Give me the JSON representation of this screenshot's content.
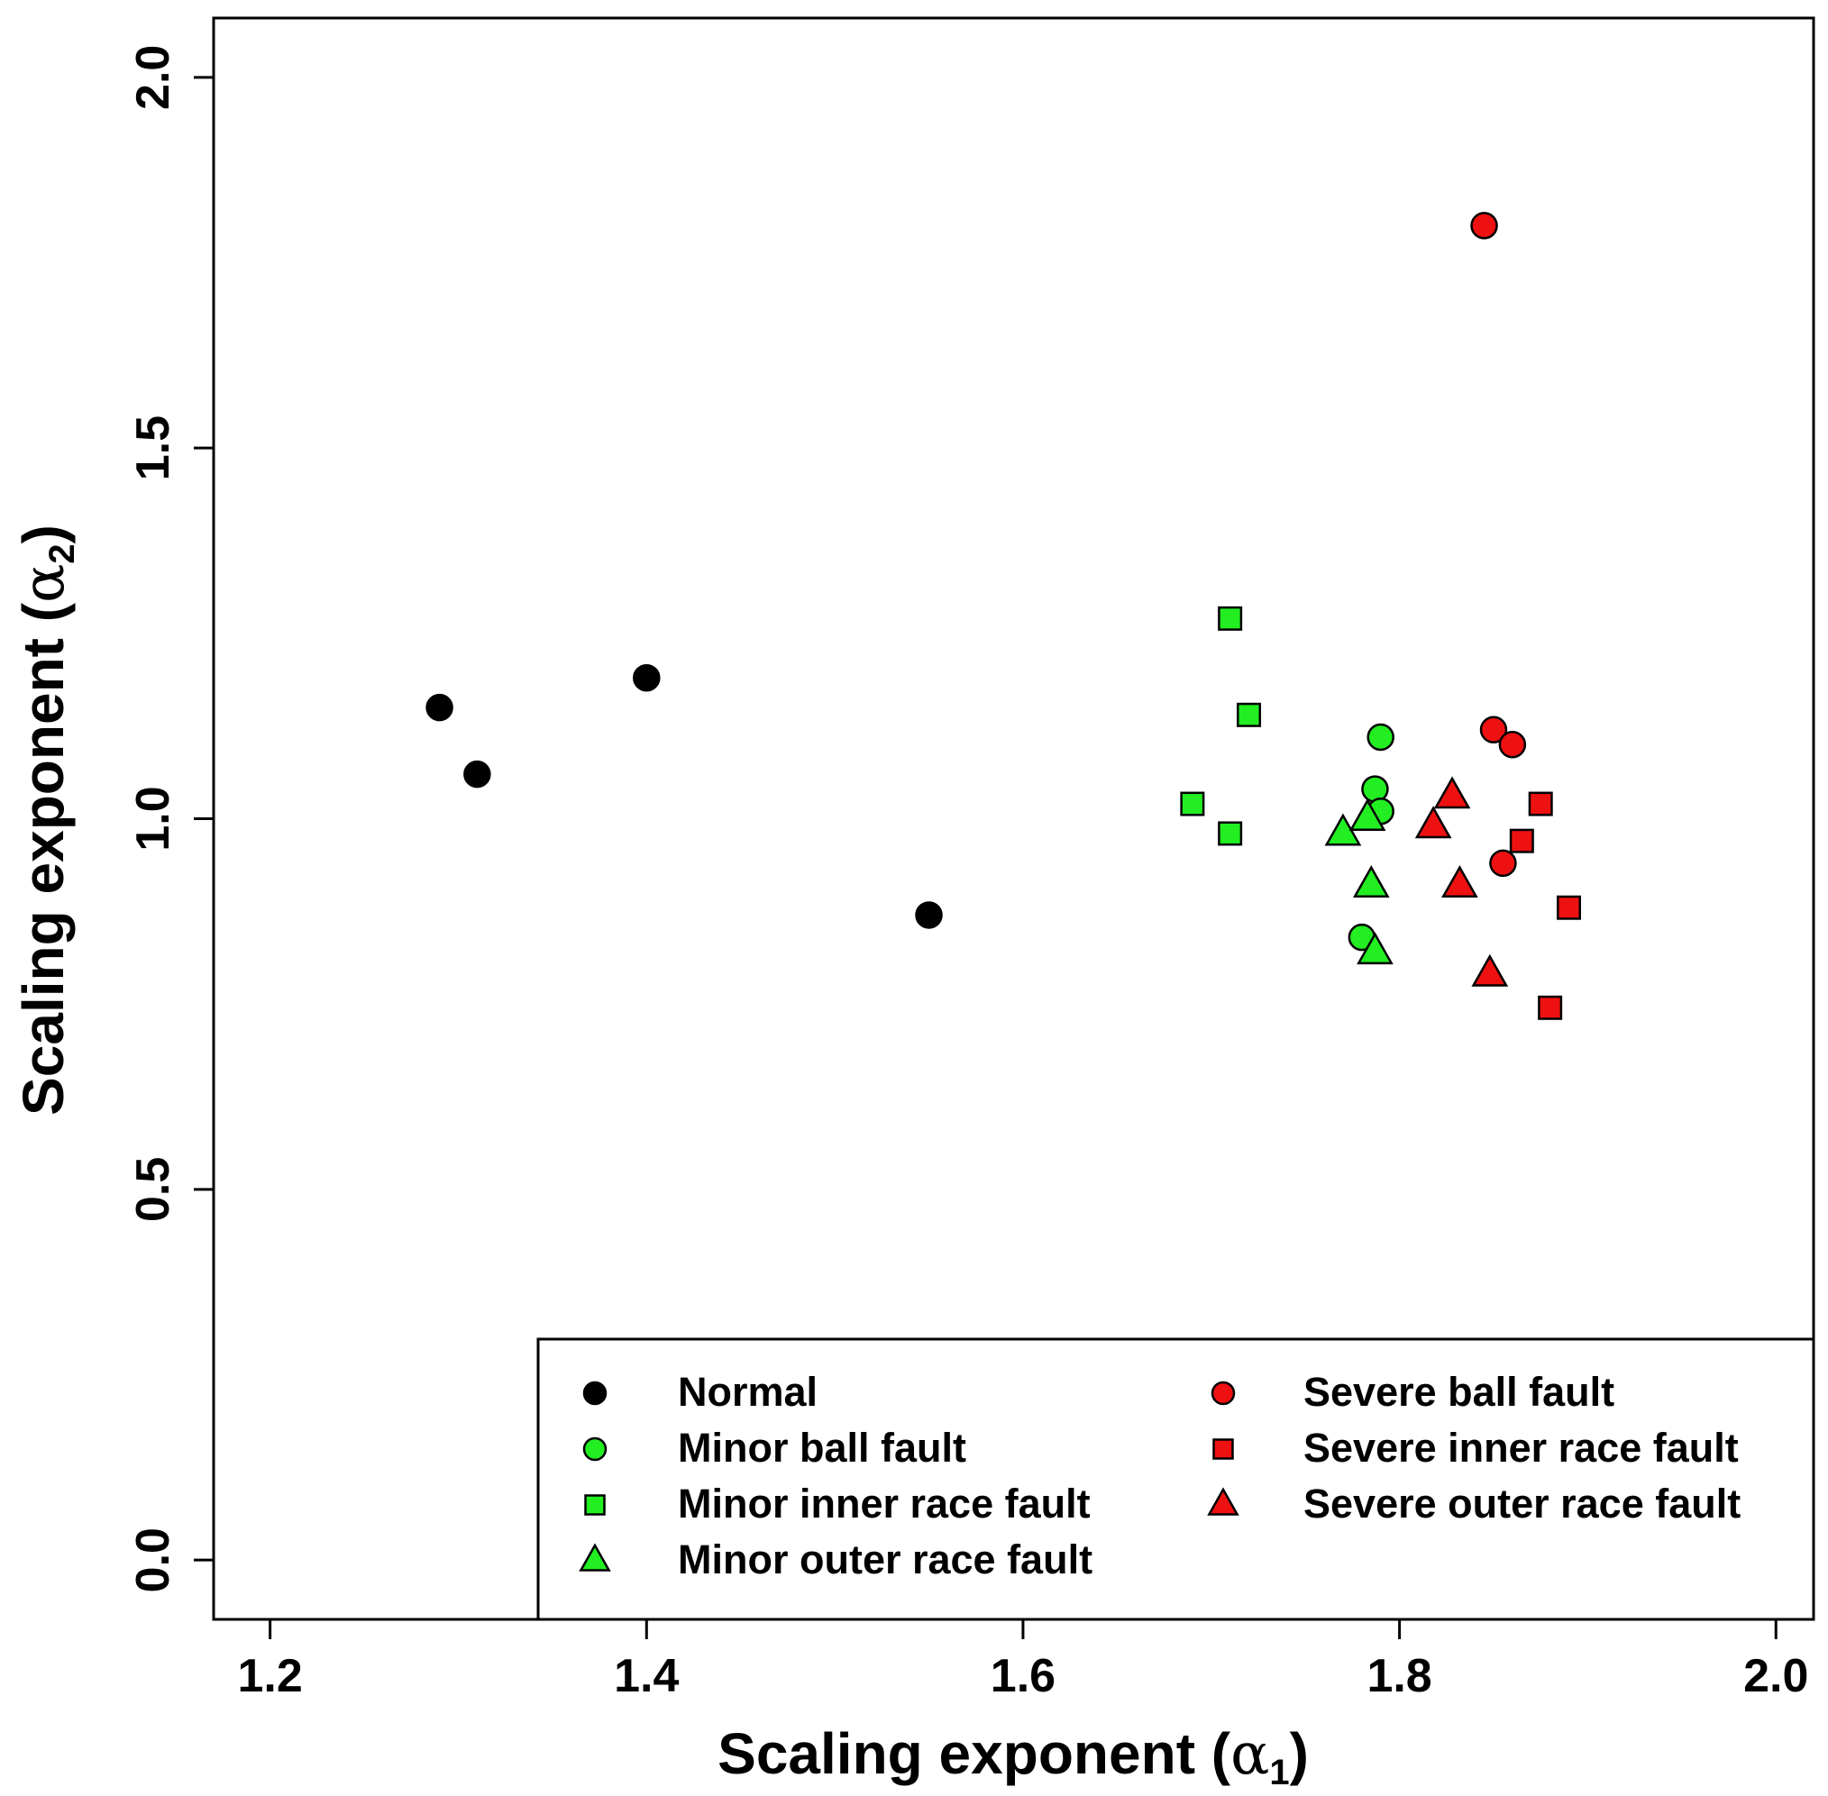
{
  "chart_data": {
    "type": "scatter",
    "title": "",
    "xlabel": "Scaling exponent (α₁)",
    "xlabel_main": "Scaling exponent (",
    "xlabel_symbol": "α",
    "xlabel_sub": "1",
    "xlabel_close": ")",
    "ylabel": "Scaling exponent (α₂)",
    "ylabel_main": "Scaling exponent (",
    "ylabel_symbol": "α",
    "ylabel_sub": "2",
    "ylabel_close": ")",
    "xlim": [
      1.17,
      2.02
    ],
    "ylim": [
      -0.08,
      2.08
    ],
    "xticks": [
      1.2,
      1.4,
      1.6,
      1.8,
      2.0
    ],
    "xtick_labels": [
      "1.2",
      "1.4",
      "1.6",
      "1.8",
      "2.0"
    ],
    "yticks": [
      0.0,
      0.5,
      1.0,
      1.5,
      2.0
    ],
    "ytick_labels": [
      "0.0",
      "0.5",
      "1.0",
      "1.5",
      "2.0"
    ],
    "grid": false,
    "legend_position": "bottom-right",
    "series": [
      {
        "name": "Normal",
        "marker": "circle",
        "color": "#000000",
        "points": [
          [
            1.29,
            1.15
          ],
          [
            1.31,
            1.06
          ],
          [
            1.4,
            1.19
          ],
          [
            1.55,
            0.87
          ]
        ]
      },
      {
        "name": "Minor ball fault",
        "marker": "circle",
        "color": "#22ee22",
        "points": [
          [
            1.79,
            1.11
          ],
          [
            1.787,
            1.04
          ],
          [
            1.79,
            1.01
          ],
          [
            1.78,
            0.84
          ]
        ]
      },
      {
        "name": "Minor inner race fault",
        "marker": "square",
        "color": "#22ee22",
        "points": [
          [
            1.71,
            1.27
          ],
          [
            1.72,
            1.14
          ],
          [
            1.69,
            1.02
          ],
          [
            1.71,
            0.98
          ]
        ]
      },
      {
        "name": "Minor outer race fault",
        "marker": "triangle",
        "color": "#22ee22",
        "points": [
          [
            1.77,
            0.98
          ],
          [
            1.783,
            1.0
          ],
          [
            1.785,
            0.91
          ],
          [
            1.787,
            0.82
          ]
        ]
      },
      {
        "name": "Severe ball fault",
        "marker": "circle",
        "color": "#ee1111",
        "points": [
          [
            1.845,
            1.8
          ],
          [
            1.85,
            1.12
          ],
          [
            1.86,
            1.1
          ],
          [
            1.855,
            0.94
          ]
        ]
      },
      {
        "name": "Severe inner race fault",
        "marker": "square",
        "color": "#ee1111",
        "points": [
          [
            1.875,
            1.02
          ],
          [
            1.865,
            0.97
          ],
          [
            1.89,
            0.88
          ],
          [
            1.88,
            0.745
          ]
        ]
      },
      {
        "name": "Severe outer race fault",
        "marker": "triangle",
        "color": "#ee1111",
        "points": [
          [
            1.828,
            1.03
          ],
          [
            1.818,
            0.99
          ],
          [
            1.832,
            0.91
          ],
          [
            1.848,
            0.79
          ]
        ]
      }
    ]
  }
}
